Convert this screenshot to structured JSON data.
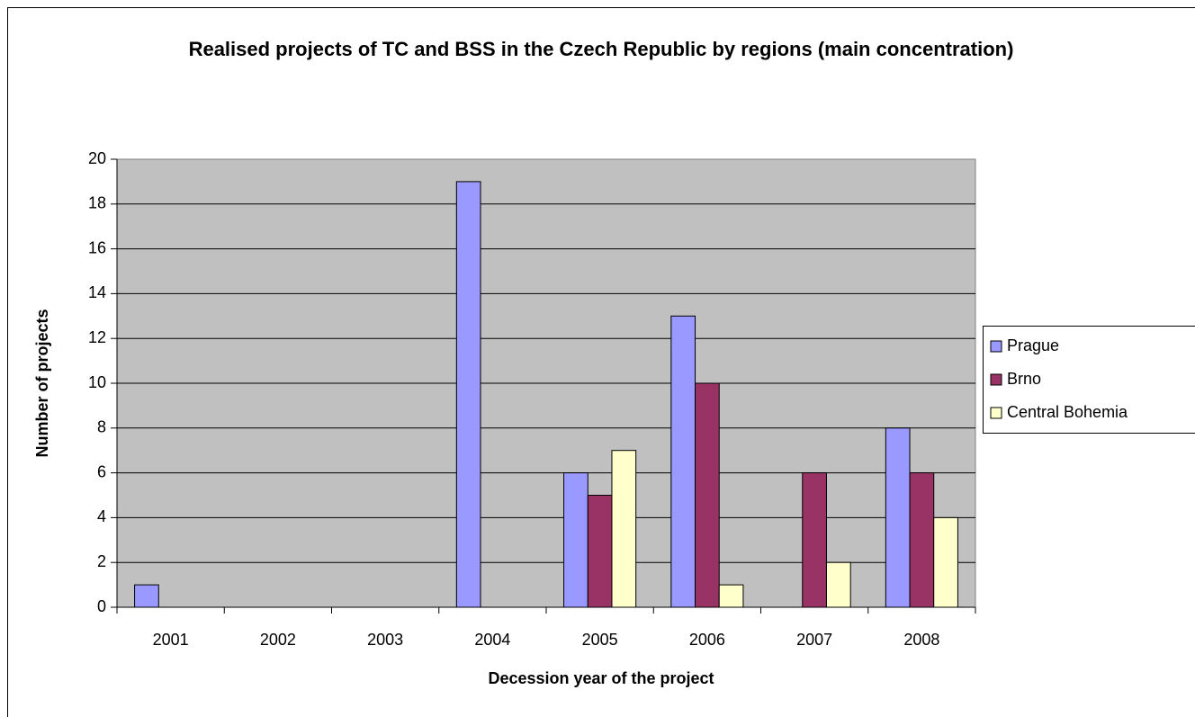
{
  "chart_data": {
    "type": "bar",
    "title": "Realised projects of TC and BSS in the Czech Republic by regions (main concentration)",
    "x_label": "Decession year of the project",
    "y_label": "Number of projects",
    "categories": [
      "2001",
      "2002",
      "2003",
      "2004",
      "2005",
      "2006",
      "2007",
      "2008"
    ],
    "series": [
      {
        "name": "Prague",
        "color": "#9999ff",
        "values": [
          1,
          0,
          0,
          19,
          6,
          13,
          0,
          8
        ]
      },
      {
        "name": "Brno",
        "color": "#993366",
        "values": [
          0,
          0,
          0,
          0,
          5,
          10,
          6,
          6
        ]
      },
      {
        "name": "Central Bohemia",
        "color": "#ffffcc",
        "values": [
          0,
          0,
          0,
          0,
          7,
          1,
          2,
          4
        ]
      }
    ],
    "ylim": [
      0,
      20
    ],
    "yticks": [
      0,
      2,
      4,
      6,
      8,
      10,
      12,
      14,
      16,
      18,
      20
    ],
    "grid": true,
    "legend": "right"
  }
}
